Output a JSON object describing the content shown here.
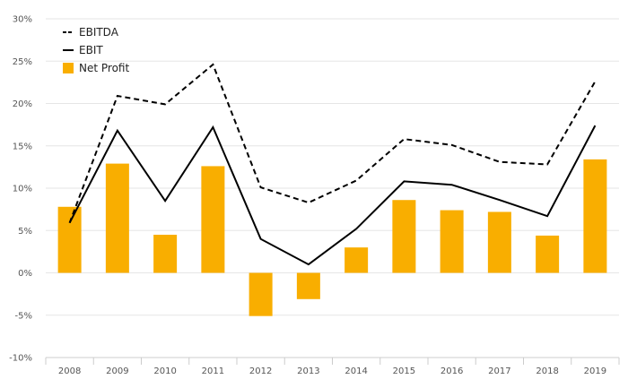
{
  "chart_data": {
    "type": "bar",
    "title": "",
    "xlabel": "",
    "ylabel": "",
    "categories": [
      "2008",
      "2009",
      "2010",
      "2011",
      "2012",
      "2013",
      "2014",
      "2015",
      "2016",
      "2017",
      "2018",
      "2019"
    ],
    "ylim": [
      -10,
      30
    ],
    "yticks": [
      30,
      25,
      20,
      15,
      10,
      5,
      0,
      -5,
      -10
    ],
    "ytick_labels": [
      "30%",
      "25%",
      "20%",
      "15%",
      "10%",
      "5%",
      "0%",
      "-5%",
      "-10%"
    ],
    "grid": true,
    "legend_position": "top-left",
    "series": [
      {
        "name": "EBITDA",
        "type": "line",
        "style": "dashed",
        "color": "#000000",
        "values": [
          5.9,
          20.9,
          19.9,
          24.6,
          10.1,
          8.3,
          10.9,
          15.8,
          15.1,
          13.1,
          12.8,
          22.6
        ]
      },
      {
        "name": "EBIT",
        "type": "line",
        "style": "solid",
        "color": "#000000",
        "values": [
          5.9,
          16.8,
          8.5,
          17.2,
          4.0,
          1.0,
          5.2,
          10.8,
          10.4,
          8.6,
          6.7,
          17.4
        ]
      },
      {
        "name": "Net Profit",
        "type": "bar",
        "color": "#f9ae00",
        "values": [
          7.8,
          12.9,
          4.5,
          12.6,
          -5.1,
          -3.1,
          3.0,
          8.6,
          7.4,
          7.2,
          4.4,
          13.4
        ]
      }
    ]
  }
}
